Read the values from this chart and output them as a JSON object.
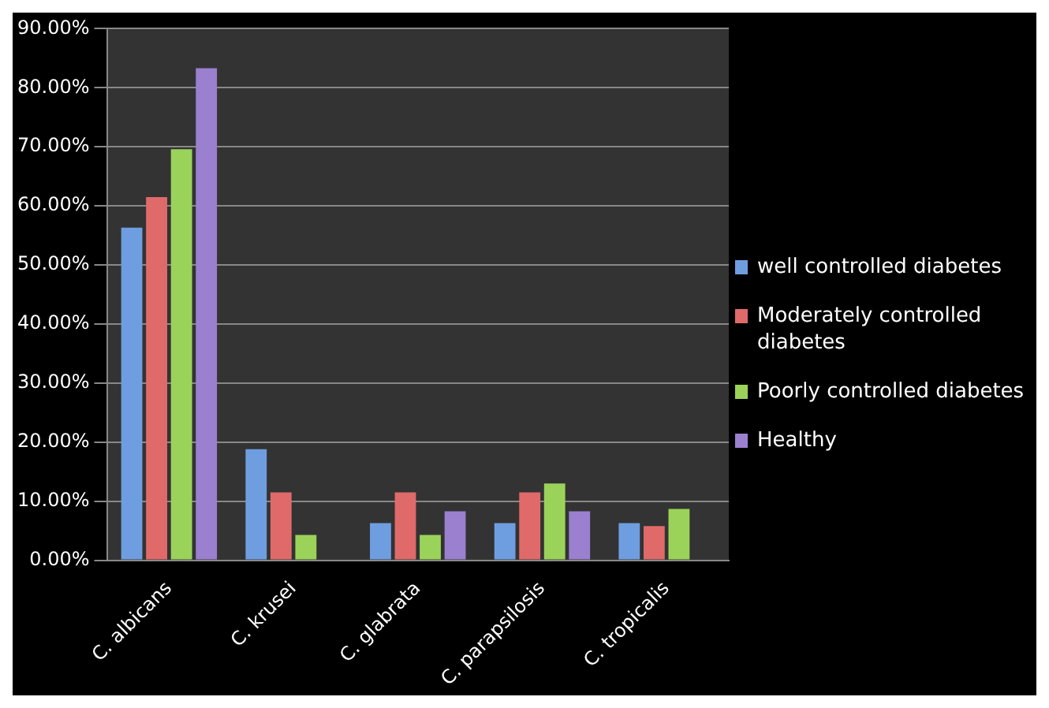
{
  "chart_data": {
    "type": "bar",
    "categories": [
      "C. albicans",
      "C. krusei",
      "C. glabrata",
      "C. parapsilosis",
      "C. tropicalis"
    ],
    "series": [
      {
        "name": "well controlled diabetes",
        "color": "#6f9ee0",
        "values": [
          56.3,
          18.8,
          6.3,
          6.3,
          6.3
        ]
      },
      {
        "name": "Moderately controlled diabetes",
        "color": "#e06a6a",
        "values": [
          61.5,
          11.5,
          11.5,
          11.5,
          5.8
        ]
      },
      {
        "name": "Poorly controlled diabetes",
        "color": "#9bd35a",
        "values": [
          69.6,
          4.3,
          4.3,
          13,
          8.7
        ]
      },
      {
        "name": "Healthy",
        "color": "#9b80d0",
        "values": [
          83.3,
          0,
          8.3,
          8.3,
          0
        ]
      }
    ],
    "ylim": [
      0,
      90
    ],
    "yticks": [
      {
        "value": 0,
        "label": "0.00%"
      },
      {
        "value": 10,
        "label": "10.00%"
      },
      {
        "value": 20,
        "label": "20.00%"
      },
      {
        "value": 30,
        "label": "30.00%"
      },
      {
        "value": 40,
        "label": "40.00%"
      },
      {
        "value": 50,
        "label": "50.00%"
      },
      {
        "value": 60,
        "label": "60.00%"
      },
      {
        "value": 70,
        "label": "70.00%"
      },
      {
        "value": 80,
        "label": "80.00%"
      },
      {
        "value": 90,
        "label": "90.00%"
      }
    ],
    "grid": "y",
    "legend": "right"
  }
}
